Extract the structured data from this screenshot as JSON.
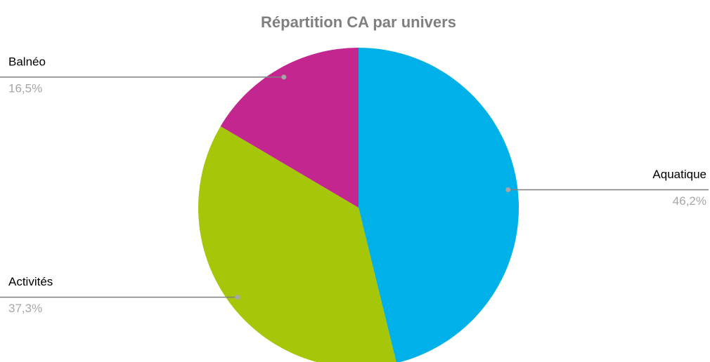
{
  "chart_data": {
    "type": "pie",
    "title": "Répartition CA par univers",
    "categories": [
      "Aquatique",
      "Activités",
      "Balnéo"
    ],
    "values": [
      46.2,
      37.3,
      16.5
    ],
    "value_labels": [
      "46,2%",
      "37,3%",
      "16,5%"
    ],
    "colors": [
      "#00b0e8",
      "#a6c60a",
      "#c4268f"
    ]
  }
}
